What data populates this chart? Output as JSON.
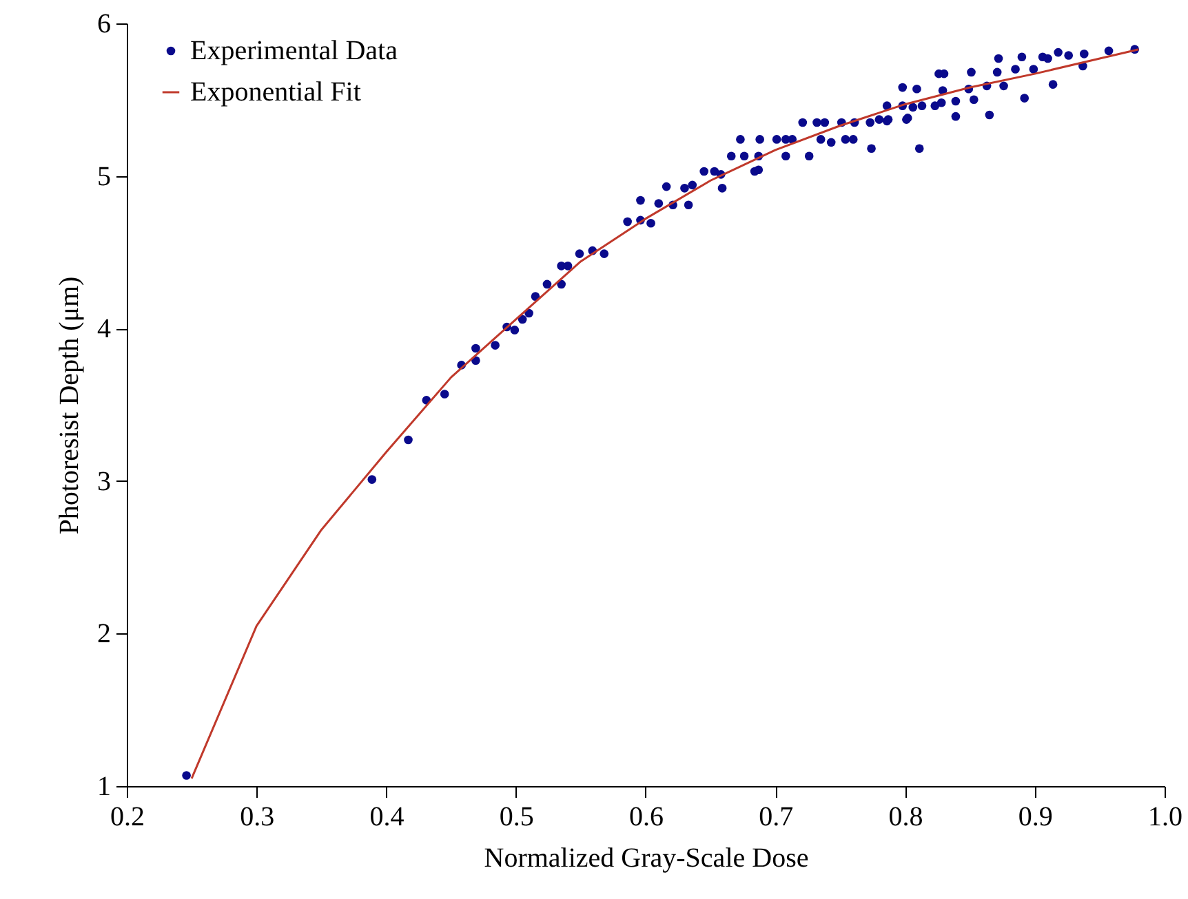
{
  "chart_data": {
    "type": "scatter",
    "xlabel": "Normalized Gray-Scale Dose",
    "ylabel": "Photoresist Depth (μm)",
    "xlim": [
      0.2,
      1.0
    ],
    "ylim": [
      1,
      6
    ],
    "xticks": [
      0.2,
      0.3,
      0.4,
      0.5,
      0.6,
      0.7,
      0.8,
      0.9,
      {
        "value": 1,
        "label": "1.0"
      }
    ],
    "yticks": [
      1,
      2,
      3,
      4,
      5,
      6
    ],
    "grid": false,
    "legend": "top left",
    "series": [
      {
        "name": "Experimental Data",
        "marker": "circle",
        "color": "#0a0a8c",
        "x": [
          0.246,
          0.389,
          0.417,
          0.431,
          0.445,
          0.458,
          0.469,
          0.469,
          0.484,
          0.493,
          0.499,
          0.505,
          0.51,
          0.515,
          0.524,
          0.535,
          0.535,
          0.54,
          0.549,
          0.559,
          0.568,
          0.586,
          0.596,
          0.604,
          0.596,
          0.61,
          0.621,
          0.633,
          0.616,
          0.63,
          0.636,
          0.645,
          0.653,
          0.659,
          0.658,
          0.684,
          0.687,
          0.666,
          0.676,
          0.687,
          0.673,
          0.688,
          0.701,
          0.708,
          0.708,
          0.713,
          0.726,
          0.721,
          0.732,
          0.738,
          0.735,
          0.743,
          0.754,
          0.76,
          0.751,
          0.761,
          0.773,
          0.78,
          0.787,
          0.774,
          0.802,
          0.786,
          0.786,
          0.798,
          0.798,
          0.801,
          0.806,
          0.809,
          0.811,
          0.813,
          0.823,
          0.828,
          0.826,
          0.83,
          0.829,
          0.839,
          0.839,
          0.849,
          0.851,
          0.853,
          0.863,
          0.865,
          0.871,
          0.872,
          0.876,
          0.885,
          0.89,
          0.892,
          0.899,
          0.906,
          0.91,
          0.914,
          0.918,
          0.926,
          0.938,
          0.937,
          0.957,
          0.977
        ],
        "values": [
          1.07,
          3.01,
          3.27,
          3.53,
          3.57,
          3.76,
          3.87,
          3.79,
          3.89,
          4.01,
          3.99,
          4.06,
          4.1,
          4.21,
          4.29,
          4.29,
          4.41,
          4.41,
          4.49,
          4.51,
          4.49,
          4.7,
          4.71,
          4.69,
          4.84,
          4.82,
          4.81,
          4.81,
          4.93,
          4.92,
          4.94,
          5.03,
          5.03,
          4.92,
          5.01,
          5.03,
          5.04,
          5.13,
          5.13,
          5.13,
          5.24,
          5.24,
          5.24,
          5.13,
          5.24,
          5.24,
          5.13,
          5.35,
          5.35,
          5.35,
          5.24,
          5.22,
          5.24,
          5.24,
          5.35,
          5.35,
          5.35,
          5.37,
          5.37,
          5.18,
          5.38,
          5.46,
          5.36,
          5.58,
          5.46,
          5.37,
          5.45,
          5.57,
          5.18,
          5.46,
          5.46,
          5.48,
          5.67,
          5.67,
          5.56,
          5.49,
          5.39,
          5.57,
          5.68,
          5.5,
          5.59,
          5.4,
          5.68,
          5.77,
          5.59,
          5.7,
          5.78,
          5.51,
          5.7,
          5.78,
          5.77,
          5.6,
          5.81,
          5.79,
          5.8,
          5.72,
          5.82,
          5.83
        ]
      },
      {
        "name": "Exponential Fit",
        "type": "line",
        "marker": "none",
        "line_style": "solid",
        "color": "#c0392b",
        "x": [
          0.25,
          0.3,
          0.35,
          0.4,
          0.45,
          0.5,
          0.55,
          0.6,
          0.65,
          0.7,
          0.75,
          0.8,
          0.85,
          0.9,
          0.95,
          0.98
        ],
        "values": [
          1.05,
          2.05,
          2.68,
          3.19,
          3.68,
          4.06,
          4.44,
          4.72,
          4.97,
          5.17,
          5.33,
          5.47,
          5.58,
          5.67,
          5.77,
          5.83
        ]
      }
    ]
  }
}
